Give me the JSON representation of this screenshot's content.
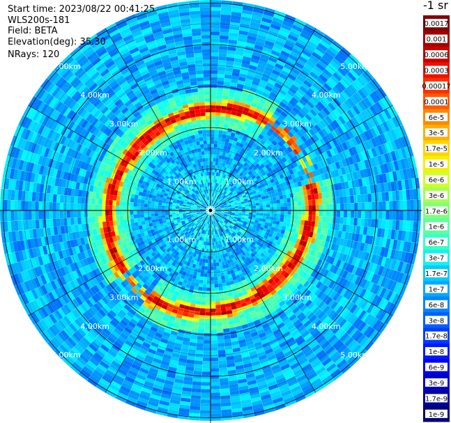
{
  "info": {
    "start_time": "Start time: 2023/08/22 00:41:25",
    "instrument": "WLS200s-181",
    "field": "Field: BETA",
    "elevation": "Elevation(deg): 35.30",
    "nrays": "NRays: 120"
  },
  "colorbar": {
    "title": "-1 sr",
    "labels": [
      "0.0017",
      "0.001",
      "0.0006",
      "0.0003",
      "0.00017",
      "0.0001",
      "6e-5",
      "3e-5",
      "1.7e-5",
      "1e-5",
      "6e-6",
      "3e-6",
      "1.7e-6",
      "1e-6",
      "6e-7",
      "3e-7",
      "1.7e-7",
      "1e-7",
      "6e-8",
      "3e-8",
      "1.7e-8",
      "1e-8",
      "6e-9",
      "3e-9",
      "1.7e-9",
      "1e-9"
    ],
    "colors": [
      "#7f0000",
      "#a00000",
      "#c80000",
      "#ee1000",
      "#ff2e00",
      "#ff5a00",
      "#ff8800",
      "#ffb000",
      "#ffd400",
      "#f4f000",
      "#d0ff28",
      "#a6ff50",
      "#80ff78",
      "#5cffa0",
      "#38ffc8",
      "#18f0ee",
      "#00ccff",
      "#00a8ff",
      "#0084ff",
      "#0060ff",
      "#003cff",
      "#0018ff",
      "#0000e8",
      "#0000c4",
      "#00009c",
      "#000078"
    ]
  },
  "chart_data": {
    "type": "heatmap",
    "title": "",
    "field": "BETA",
    "units": "-1 sr",
    "projection": "polar (PPI scan)",
    "rays": 120,
    "elevation_deg": 35.3,
    "range_rings_km": [
      1,
      2,
      3,
      4,
      5
    ],
    "range_labels": [
      "1.00km",
      "2.00km",
      "3.00km",
      "4.00km",
      "5.00km"
    ],
    "color_scale_min": 1e-09,
    "color_scale_max": 0.0017,
    "features": [
      "Broad background of roughly 1e-8 to 1e-7 sr-1 across the scan",
      "Ring of high backscatter (about 3e-5 to 3e-4 sr-1) near 2.3 to 2.7 km range",
      "Weaker, lower values near the center within about 1 km"
    ]
  }
}
